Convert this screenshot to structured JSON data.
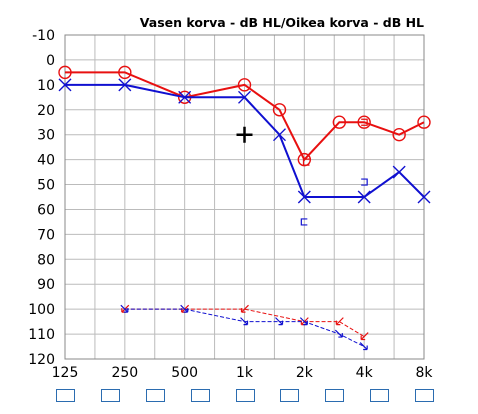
{
  "chart_data": {
    "type": "line",
    "title": "Vasen korva - dB HL/Oikea korva - dB HL",
    "xlabel": "",
    "ylabel": "",
    "x_tick_labels": [
      "125",
      "250",
      "500",
      "1k",
      "2k",
      "4k",
      "8k"
    ],
    "x_tick_freqs": [
      125,
      250,
      500,
      1000,
      2000,
      4000,
      8000
    ],
    "x_scale": "log2",
    "xlim": [
      125,
      8000
    ],
    "y_tick_labels": [
      "-10",
      "0",
      "10",
      "20",
      "30",
      "40",
      "50",
      "60",
      "70",
      "80",
      "90",
      "100",
      "110",
      "120"
    ],
    "ylim": [
      -10,
      120
    ],
    "y_inverted": true,
    "grid": true,
    "colors": {
      "red": "#e81010",
      "blue": "#1010d0",
      "grid": "#bbbbbb",
      "box": "#2b6cb0",
      "marker": "#000000"
    },
    "series": [
      {
        "color": "red",
        "symbol": "circle",
        "style": "solid",
        "x": [
          125,
          250,
          500,
          1000,
          1500,
          2000,
          3000,
          4000,
          6000,
          8000
        ],
        "y": [
          5,
          5,
          15,
          10,
          20,
          40,
          25,
          25,
          30,
          25
        ]
      },
      {
        "color": "blue",
        "symbol": "x",
        "style": "solid",
        "x": [
          125,
          250,
          500,
          1000,
          1500,
          2000,
          4000,
          6000,
          8000
        ],
        "y": [
          10,
          10,
          15,
          15,
          30,
          55,
          55,
          45,
          55
        ]
      },
      {
        "color": "red",
        "symbol": "arrow-down-left",
        "style": "dashed",
        "x": [
          250,
          500,
          1000,
          2000,
          3000,
          4000
        ],
        "y": [
          100,
          100,
          100,
          105,
          105,
          111
        ]
      },
      {
        "color": "blue",
        "symbol": "arrow-down-right",
        "style": "dashed",
        "x": [
          250,
          500,
          1000,
          1500,
          2000,
          3000,
          4000
        ],
        "y": [
          100,
          100,
          105,
          105,
          105,
          110,
          115
        ]
      }
    ],
    "bracket_markers": [
      {
        "color": "blue",
        "x": 2000,
        "y": 65,
        "glyph": "["
      },
      {
        "color": "red",
        "x": 2050,
        "y": 41,
        "glyph": "["
      },
      {
        "color": "blue",
        "x": 4000,
        "y": 49,
        "glyph": "]"
      },
      {
        "color": "red",
        "x": 4000,
        "y": 25,
        "glyph": "]"
      }
    ],
    "cursor_marker": {
      "x": 1000,
      "y": 30,
      "symbol": "plus"
    },
    "bottom_boxes": {
      "count": 9
    }
  }
}
